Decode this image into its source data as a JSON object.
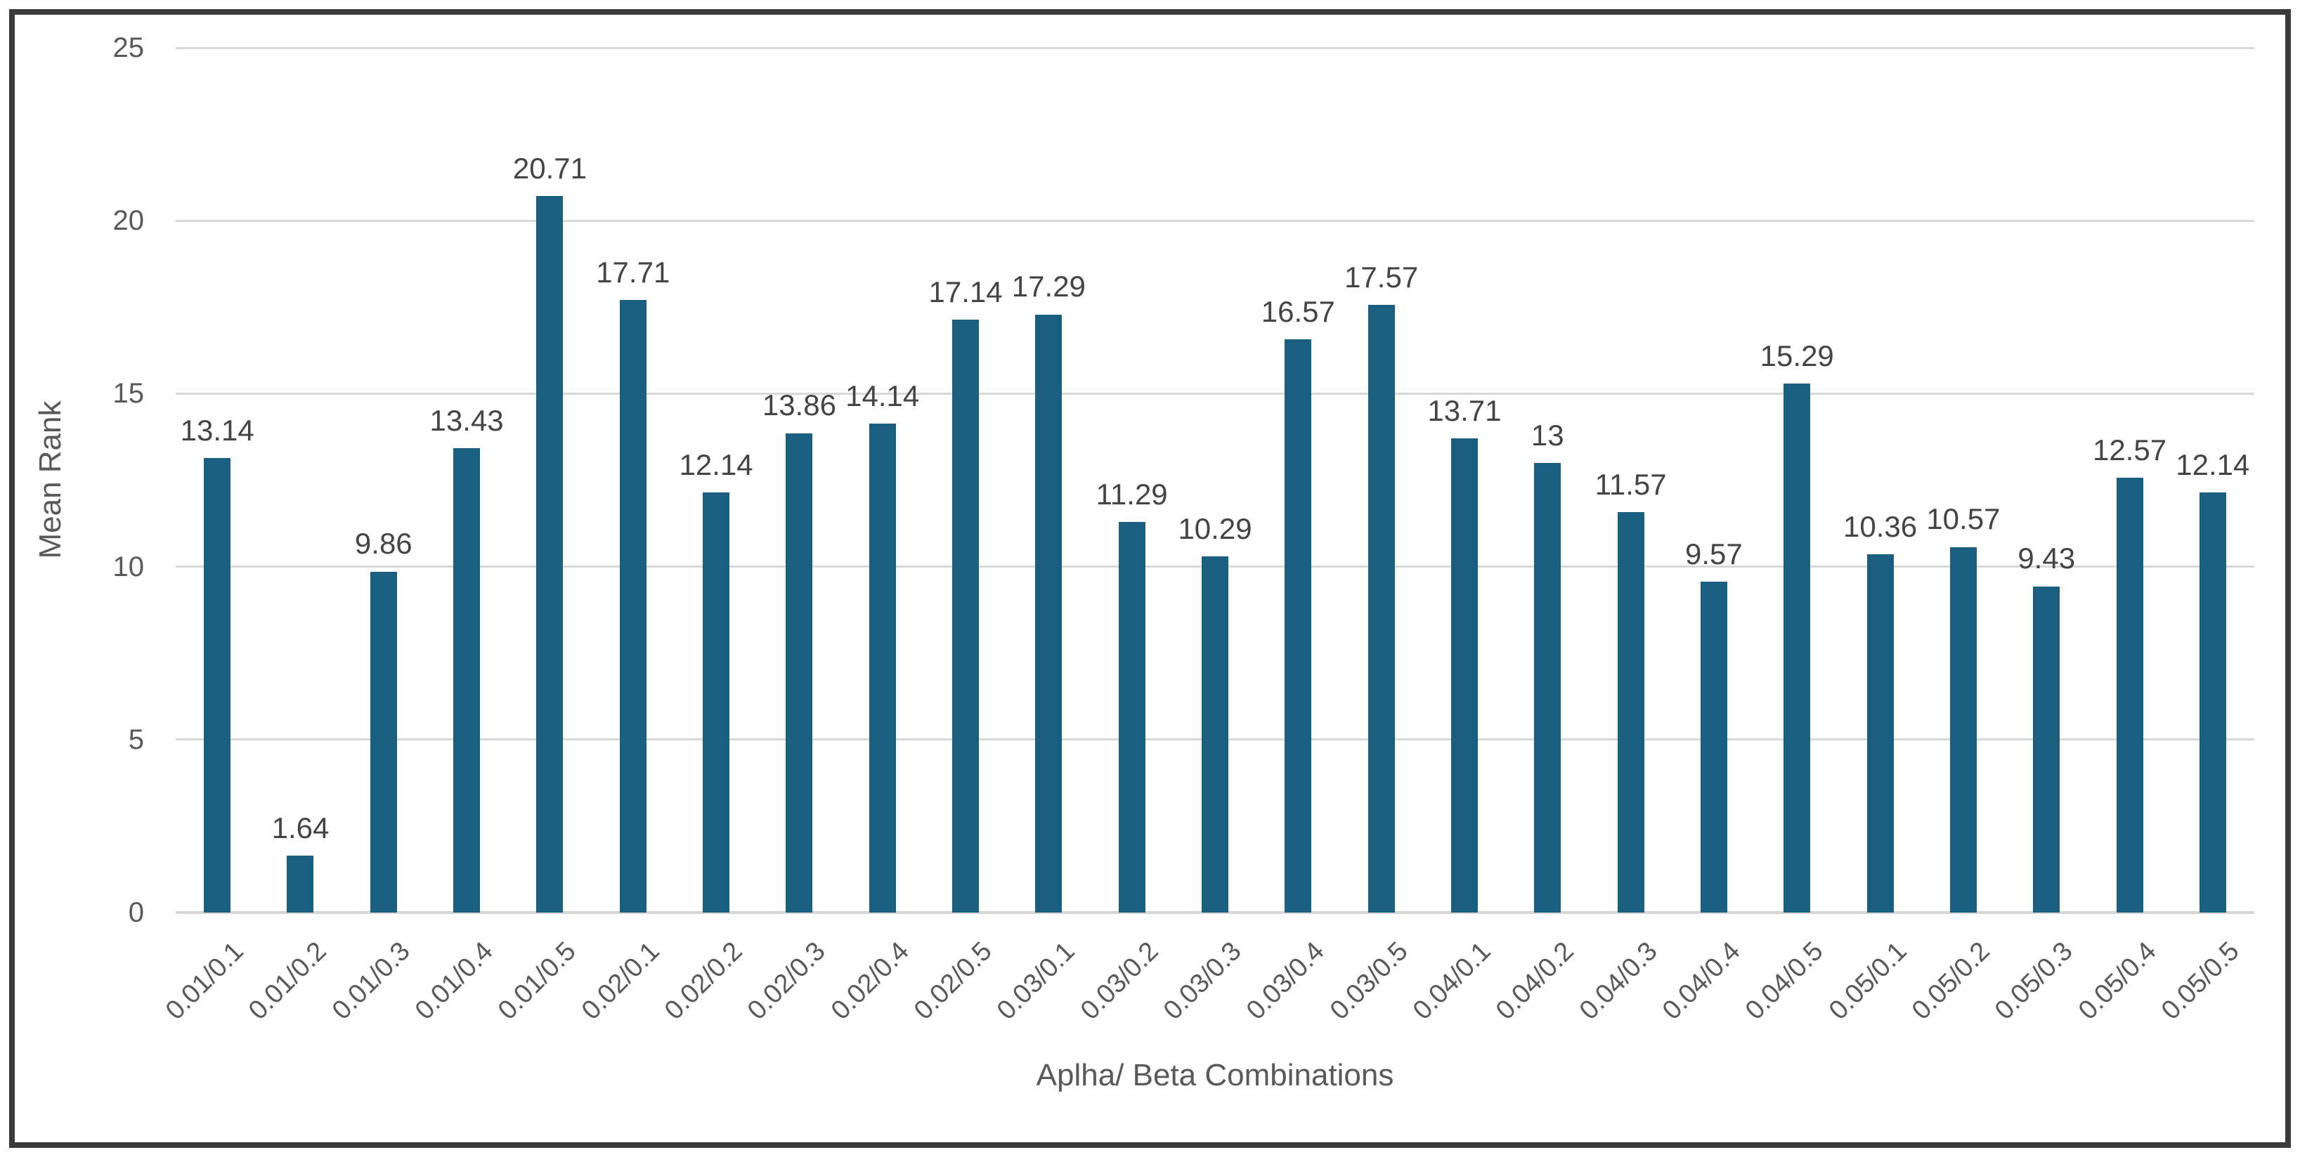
{
  "chart_data": {
    "type": "bar",
    "title": "",
    "xlabel": "Aplha/ Beta Combinations",
    "ylabel": "Mean Rank",
    "categories": [
      "0.01/0.1",
      "0.01/0.2",
      "0.01/0.3",
      "0.01/0.4",
      "0.01/0.5",
      "0.02/0.1",
      "0.02/0.2",
      "0.02/0.3",
      "0.02/0.4",
      "0.02/0.5",
      "0.03/0.1",
      "0.03/0.2",
      "0.03/0.3",
      "0.03/0.4",
      "0.03/0.5",
      "0.04/0.1",
      "0.04/0.2",
      "0.04/0.3",
      "0.04/0.4",
      "0.04/0.5",
      "0.05/0.1",
      "0.05/0.2",
      "0.05/0.3",
      "0.05/0.4",
      "0.05/0.5"
    ],
    "values": [
      13.14,
      1.64,
      9.86,
      13.43,
      20.71,
      17.71,
      12.14,
      13.86,
      14.14,
      17.14,
      17.29,
      11.29,
      10.29,
      16.57,
      17.57,
      13.71,
      13,
      11.57,
      9.57,
      15.29,
      10.36,
      10.57,
      9.43,
      12.57,
      12.14
    ],
    "value_labels": [
      "13.14",
      "1.64",
      "9.86",
      "13.43",
      "20.71",
      "17.71",
      "12.14",
      "13.86",
      "14.14",
      "17.14",
      "17.29",
      "11.29",
      "10.29",
      "16.57",
      "17.57",
      "13.71",
      "13",
      "11.57",
      "9.57",
      "15.29",
      "10.36",
      "10.57",
      "9.43",
      "12.57",
      "12.14"
    ],
    "ylim": [
      0,
      25
    ],
    "yticks": [
      0,
      5,
      10,
      15,
      20,
      25
    ],
    "ytick_labels": [
      "0",
      "5",
      "10",
      "15",
      "20",
      "25"
    ],
    "grid": "horizontal",
    "legend": "none"
  },
  "colors": {
    "bar": "#1a5f80",
    "gridline": "#d9d9d9",
    "axis_line": "#d6d6d6",
    "tick_text": "#595959",
    "value_text": "#444444",
    "frame_border": "#3a3a3a",
    "background": "#ffffff"
  }
}
